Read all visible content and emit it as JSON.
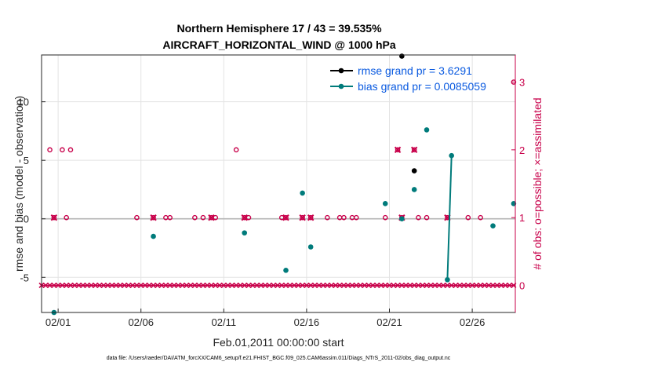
{
  "chart_data": {
    "type": "scatter",
    "title_line1": "Northern Hemisphere 17 / 43 = 39.535%",
    "title_line2": "AIRCRAFT_HORIZONTAL_WIND @ 1000 hPa",
    "xlabel": "Feb.01,2011 00:00:00 start",
    "ylabel_left": "rmse and bias (model - observation)",
    "ylabel_right": "# of obs: o=possible; ×=assimilated",
    "footer": "data file: /Users/raeder/DAI/ATM_forcXX/CAM6_setup/f.e21.FHIST_BGC.f09_025.CAM6assim.011/Diags_NTrS_2011-02/obs_diag_output.nc",
    "x_range": [
      1.0,
      29.6
    ],
    "x_ticks": [
      2,
      7,
      12,
      17,
      22,
      27
    ],
    "x_tick_labels": [
      "02/01",
      "02/06",
      "02/11",
      "02/16",
      "02/21",
      "02/26"
    ],
    "y_left_range": [
      -8,
      14
    ],
    "y_left_ticks": [
      -5,
      0,
      5,
      10
    ],
    "y_left_tick_labels": [
      "-5",
      "0",
      "5",
      "10"
    ],
    "y_right_range": [
      -0.4,
      3.4
    ],
    "y_right_ticks": [
      0,
      1,
      2,
      3
    ],
    "y_right_tick_labels": [
      "0",
      "1",
      "2",
      "3"
    ],
    "legend": {
      "rmse_label": "rmse grand pr = 3.6291",
      "bias_label": "bias grand pr = 0.0085059",
      "position": "top-right"
    },
    "colors": {
      "rmse": "#000000",
      "bias": "#007b7b",
      "obs": "#c8004a",
      "zero_line": "#b4b4b4"
    },
    "rmse_points": [
      [
        22.75,
        13.9
      ],
      [
        23.5,
        4.1
      ]
    ],
    "bias_points": [
      [
        1.75,
        -8.0
      ],
      [
        7.75,
        -1.5
      ],
      [
        13.25,
        -1.2
      ],
      [
        15.75,
        -4.4
      ],
      [
        16.75,
        2.2
      ],
      [
        17.25,
        -2.4
      ],
      [
        21.75,
        1.3
      ],
      [
        22.75,
        0.0
      ],
      [
        23.5,
        2.5
      ],
      [
        24.25,
        7.6
      ],
      [
        28.25,
        -0.6
      ],
      [
        29.5,
        1.3
      ]
    ],
    "bias_line": [
      [
        25.5,
        -5.2
      ],
      [
        25.75,
        5.4
      ]
    ],
    "obs_possible": [
      [
        1.5,
        2
      ],
      [
        1.75,
        1
      ],
      [
        2.25,
        2
      ],
      [
        2.5,
        1
      ],
      [
        2.75,
        2
      ],
      [
        6.75,
        1
      ],
      [
        7.75,
        1
      ],
      [
        8.5,
        1
      ],
      [
        8.75,
        1
      ],
      [
        10.25,
        1
      ],
      [
        10.75,
        1
      ],
      [
        11.25,
        1
      ],
      [
        11.5,
        1
      ],
      [
        12.75,
        2
      ],
      [
        13.25,
        1
      ],
      [
        13.5,
        1
      ],
      [
        15.5,
        1
      ],
      [
        15.75,
        1
      ],
      [
        16.75,
        1
      ],
      [
        17.25,
        1
      ],
      [
        18.25,
        1
      ],
      [
        19.0,
        1
      ],
      [
        19.25,
        1
      ],
      [
        19.75,
        1
      ],
      [
        20.0,
        1
      ],
      [
        21.75,
        1
      ],
      [
        22.5,
        2
      ],
      [
        22.75,
        1
      ],
      [
        23.5,
        2
      ],
      [
        23.75,
        1
      ],
      [
        24.25,
        1
      ],
      [
        25.5,
        1
      ],
      [
        26.75,
        1
      ],
      [
        27.5,
        1
      ],
      [
        29.5,
        3
      ]
    ],
    "obs_assimilated": [
      [
        1.75,
        1
      ],
      [
        7.75,
        1
      ],
      [
        11.25,
        1
      ],
      [
        13.25,
        1
      ],
      [
        15.75,
        1
      ],
      [
        16.75,
        1
      ],
      [
        17.25,
        1
      ],
      [
        22.5,
        2
      ],
      [
        22.75,
        1
      ],
      [
        23.5,
        2
      ],
      [
        25.5,
        1
      ]
    ]
  }
}
